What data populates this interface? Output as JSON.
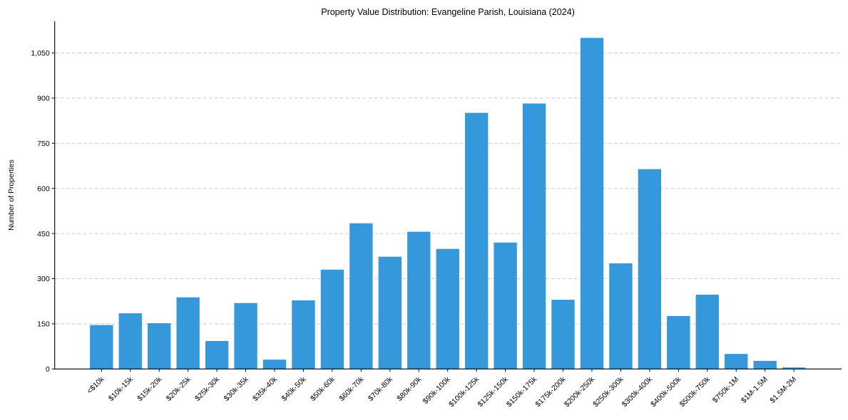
{
  "chart_data": {
    "type": "bar",
    "title": "Property Value Distribution: Evangeline Parish, Louisiana (2024)",
    "xlabel": "",
    "ylabel": "Number of Properties",
    "categories": [
      "<$10k",
      "$10k-15k",
      "$15k-20k",
      "$20k-25k",
      "$25k-30k",
      "$30k-35k",
      "$35k-40k",
      "$40k-50k",
      "$50k-60k",
      "$60k-70k",
      "$70k-80k",
      "$80k-90k",
      "$90k-100k",
      "$100k-125k",
      "$125k-150k",
      "$150k-175k",
      "$175k-200k",
      "$200k-250k",
      "$250k-300k",
      "$300k-400k",
      "$400k-500k",
      "$500k-750k",
      "$750k-1M",
      "$1M-1.5M",
      "$1.5M-2M"
    ],
    "values": [
      146,
      185,
      152,
      238,
      93,
      219,
      31,
      228,
      330,
      484,
      373,
      456,
      399,
      851,
      420,
      882,
      230,
      1100,
      351,
      664,
      176,
      247,
      50,
      27,
      5
    ],
    "ylim": [
      0,
      1155
    ],
    "yticks": [
      0,
      150,
      300,
      450,
      600,
      750,
      900,
      1050
    ],
    "ytick_labels": [
      "0",
      "150",
      "300",
      "450",
      "600",
      "750",
      "900",
      "1,050"
    ],
    "grid": {
      "axis": "y",
      "style": "dashed"
    },
    "legend": null,
    "bar_color": "#3498db",
    "xtick_rotation": 45
  }
}
